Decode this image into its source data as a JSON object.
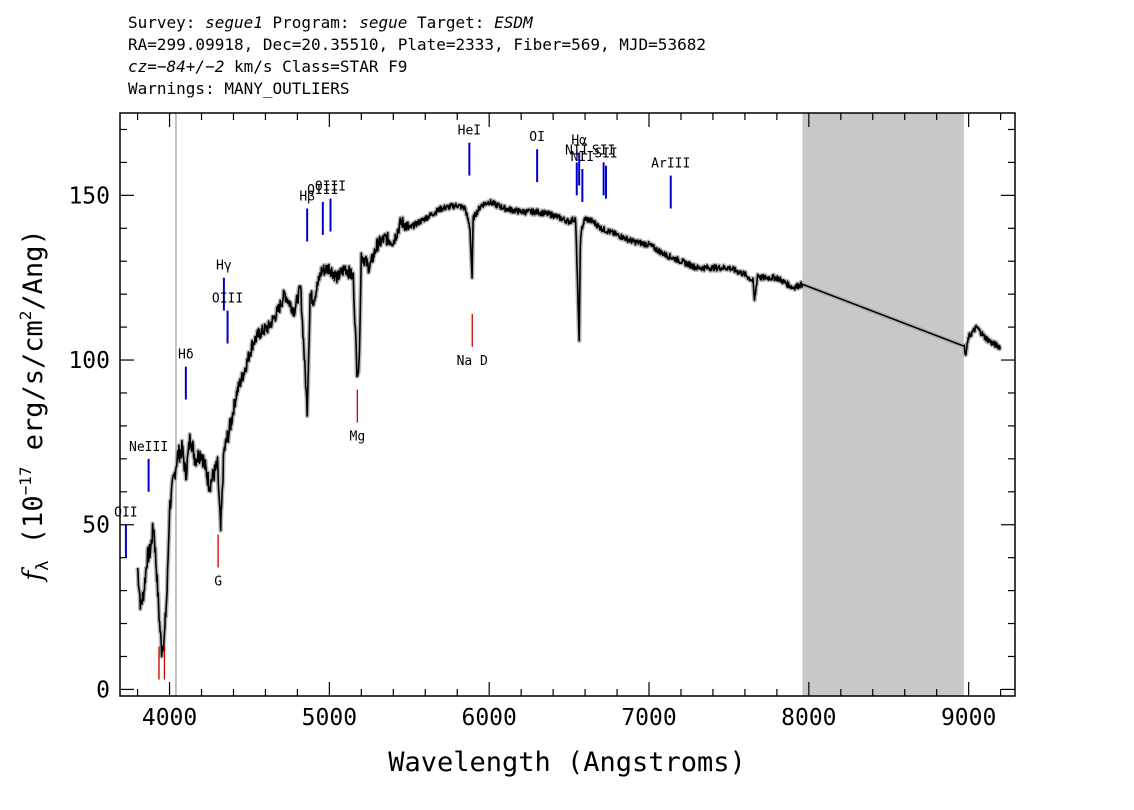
{
  "header": {
    "l1": {
      "survey_label": "Survey: ",
      "survey": "segue1",
      "program_label": " Program: ",
      "program": "segue",
      "target_label": " Target: ",
      "target": "ESDM"
    },
    "l2": "RA=299.09918, Dec=20.35510, Plate=2333, Fiber=569, MJD=53682",
    "l3": {
      "cz": "cz=−84+/−2",
      "rest": " km/s Class=STAR F9"
    },
    "l4": "Warnings: MANY_OUTLIERS"
  },
  "chart_data": {
    "type": "line",
    "xlabel": "Wavelength (Angstroms)",
    "ylabel": "f_λ (10^-17 erg/s/cm^2/Ang)",
    "xlim": [
      3690,
      9290
    ],
    "ylim": [
      -2,
      175
    ],
    "xticks": [
      4000,
      5000,
      6000,
      7000,
      8000,
      9000
    ],
    "yticks": [
      0,
      50,
      100,
      150
    ],
    "colors": {
      "spectrum": "#000000",
      "error": "#aaaaaa",
      "masked_region": "#c8c8c8",
      "emission": "#0000cc",
      "absorption": "#cc0000"
    },
    "masked_region": [
      7960,
      8970
    ],
    "vertical_marker": 4040,
    "series": [
      {
        "x": [
          3800,
          3820,
          3840,
          3860,
          3880,
          3900,
          3920,
          3935,
          3950,
          3968,
          3985,
          4000,
          4020,
          4050,
          4080,
          4102,
          4130,
          4160,
          4200,
          4250,
          4300,
          4320,
          4340,
          4380,
          4420,
          4470,
          4520,
          4560,
          4620,
          4680,
          4720,
          4780,
          4820,
          4861,
          4880,
          4900,
          4950,
          5000,
          5050,
          5100,
          5150,
          5172,
          5185,
          5200,
          5250,
          5300,
          5350,
          5400,
          5450,
          5500,
          5600,
          5700,
          5800,
          5850,
          5880,
          5893,
          5900,
          5950,
          6000,
          6100,
          6200,
          6300,
          6400,
          6500,
          6540,
          6555,
          6563,
          6570,
          6580,
          6600,
          6650,
          6700,
          6800,
          6900,
          7000,
          7100,
          7200,
          7300,
          7400,
          7500,
          7600,
          7650,
          7660,
          7680,
          7700,
          7800,
          7900,
          7960,
          8970,
          8980,
          9000,
          9050,
          9100,
          9150,
          9200
        ],
        "y": [
          37,
          25,
          30,
          40,
          42,
          50,
          35,
          22,
          12,
          16,
          30,
          55,
          62,
          71,
          73,
          65,
          77,
          70,
          72,
          62,
          68,
          48,
          72,
          80,
          90,
          97,
          105,
          108,
          110,
          115,
          120,
          115,
          122,
          85,
          120,
          118,
          127,
          128,
          125,
          128,
          125,
          97,
          97,
          132,
          128,
          135,
          137,
          136,
          142,
          140,
          143,
          146,
          147,
          146,
          140,
          125,
          143,
          147,
          148,
          146,
          145,
          145,
          144,
          142,
          143,
          120,
          105,
          135,
          140,
          143,
          142,
          140,
          138,
          136,
          135,
          132,
          130,
          128,
          128,
          128,
          126,
          124,
          118,
          126,
          125,
          125,
          122,
          123,
          105,
          101,
          107,
          110,
          107,
          105,
          104
        ]
      }
    ],
    "lines": [
      {
        "label": "OII",
        "x": 3727,
        "type": "emission",
        "y0": 40,
        "y1": 50
      },
      {
        "label": "NeIII",
        "x": 3869,
        "type": "emission",
        "y0": 60,
        "y1": 70
      },
      {
        "label": "Hδ",
        "x": 4102,
        "type": "emission",
        "y0": 88,
        "y1": 98
      },
      {
        "label": "Hγ",
        "x": 4340,
        "type": "emission",
        "y0": 115,
        "y1": 125
      },
      {
        "label": "OIII",
        "x": 4363,
        "type": "emission",
        "y0": 105,
        "y1": 115
      },
      {
        "label": "Hβ",
        "x": 4861,
        "type": "emission",
        "y0": 136,
        "y1": 146
      },
      {
        "label": "OIII",
        "x": 4959,
        "type": "emission",
        "y0": 138,
        "y1": 148
      },
      {
        "label": "OIII",
        "x": 5007,
        "type": "emission",
        "y0": 139,
        "y1": 149
      },
      {
        "label": "HeI",
        "x": 5876,
        "type": "emission",
        "y0": 156,
        "y1": 166
      },
      {
        "label": "OI",
        "x": 6300,
        "type": "emission",
        "y0": 154,
        "y1": 164
      },
      {
        "label": "NII",
        "x": 6548,
        "type": "emission",
        "y0": 150,
        "y1": 160
      },
      {
        "label": "Hα",
        "x": 6563,
        "type": "emission",
        "y0": 153,
        "y1": 163
      },
      {
        "label": "NII",
        "x": 6583,
        "type": "emission",
        "y0": 148,
        "y1": 158
      },
      {
        "label": "SII",
        "x": 6716,
        "type": "emission",
        "y0": 150,
        "y1": 160
      },
      {
        "label": "SII",
        "x": 6731,
        "type": "emission",
        "y0": 149,
        "y1": 159
      },
      {
        "label": "ArIII",
        "x": 7136,
        "type": "emission",
        "y0": 146,
        "y1": 156
      },
      {
        "label": "G",
        "x": 4304,
        "type": "absorption",
        "y0": 37,
        "y1": 47
      },
      {
        "label": "Mg",
        "x": 5175,
        "type": "absorption",
        "y0": 81,
        "y1": 91
      },
      {
        "label": "Na D",
        "x": 5894,
        "type": "absorption",
        "y0": 104,
        "y1": 114
      },
      {
        "label": "",
        "x": 3934,
        "type": "absorption",
        "y0": 3,
        "y1": 13
      },
      {
        "label": "",
        "x": 3968,
        "type": "absorption",
        "y0": 3,
        "y1": 13
      }
    ]
  }
}
